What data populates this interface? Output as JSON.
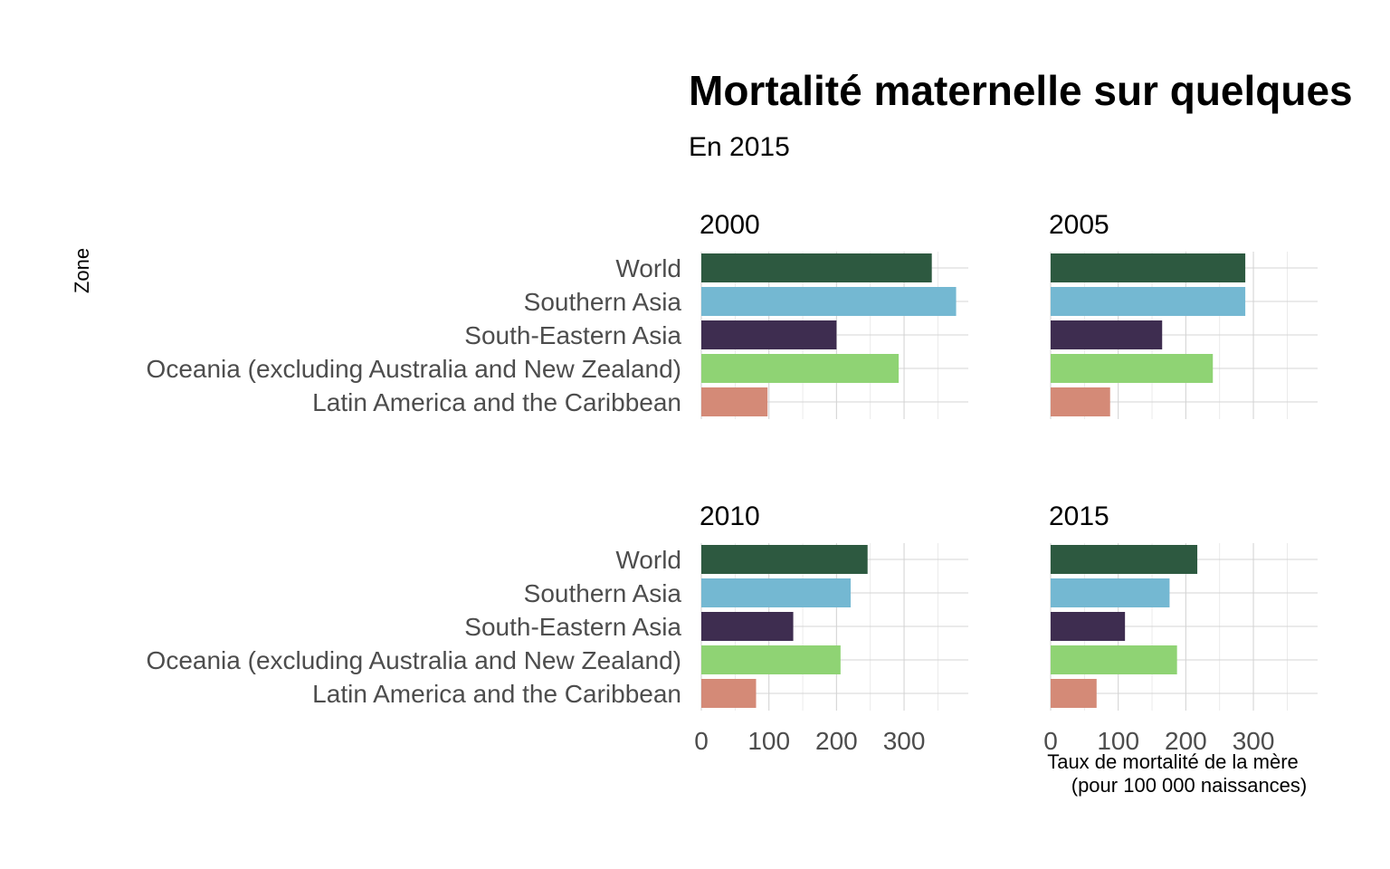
{
  "chart_data": {
    "type": "bar",
    "orientation": "horizontal",
    "title": "Mortalité maternelle sur quelques",
    "subtitle": "En 2015",
    "ylabel": "Zone",
    "xlabel_line1": "Taux de mortalité de la mère",
    "xlabel_line2": "(pour 100 000 naissances)",
    "xlim": [
      0,
      395
    ],
    "x_ticks": [
      0,
      100,
      200,
      300
    ],
    "x_tick_labels": [
      "0",
      "100",
      "200",
      "300"
    ],
    "grid": true,
    "legend": "none",
    "categories": [
      "World",
      "Southern Asia",
      "South-Eastern Asia",
      "Oceania (excluding Australia and New Zealand)",
      "Latin America and the Caribbean"
    ],
    "colors": [
      "#2d5940",
      "#74b8d2",
      "#3e2d50",
      "#8fd374",
      "#d48a77"
    ],
    "panels": [
      {
        "label": "2000",
        "values": [
          341,
          377,
          200,
          292,
          98
        ]
      },
      {
        "label": "2005",
        "values": [
          288,
          288,
          165,
          240,
          88
        ]
      },
      {
        "label": "2010",
        "values": [
          246,
          221,
          136,
          206,
          81
        ]
      },
      {
        "label": "2015",
        "values": [
          217,
          176,
          110,
          187,
          68
        ]
      }
    ]
  }
}
